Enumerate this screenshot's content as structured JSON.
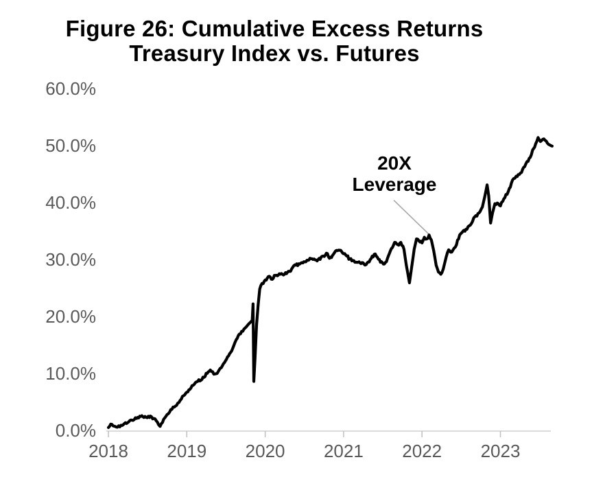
{
  "title": {
    "line1": "Figure 26: Cumulative Excess Returns",
    "line2": "Treasury Index vs. Futures"
  },
  "annotation": {
    "line1": "20X",
    "line2": "Leverage"
  },
  "colors": {
    "background": "#ffffff",
    "title_text": "#000000",
    "axis_labels": "#595959",
    "axis_line": "#cfcfcf",
    "tick_mark": "#bfbfbf",
    "series_line": "#000000",
    "leader_line": "#a6a6a6"
  },
  "chart_data": {
    "type": "line",
    "title": "Figure 26: Cumulative Excess Returns Treasury Index vs. Futures",
    "grid": false,
    "legend_position": "none",
    "x_axis": {
      "tick_labels": [
        "2018",
        "2019",
        "2020",
        "2021",
        "2022",
        "2023"
      ],
      "tick_values": [
        2018,
        2019,
        2020,
        2021,
        2022,
        2023
      ],
      "range": [
        2017.97,
        2023.64
      ]
    },
    "y_axis": {
      "tick_labels": [
        "0.0%",
        "10.0%",
        "20.0%",
        "30.0%",
        "40.0%",
        "50.0%",
        "60.0%"
      ],
      "tick_values": [
        0,
        10,
        20,
        30,
        40,
        50,
        60
      ],
      "range": [
        0,
        60
      ]
    },
    "annotation": {
      "text": "20X Leverage",
      "leader_from": [
        2021.64,
        40.4
      ],
      "leader_to": [
        2022.09,
        34.4
      ]
    },
    "noise_amplitude_pct": 0.25,
    "series": [
      {
        "name": "20X Leverage",
        "color": "#000000",
        "points": [
          [
            2018.0,
            0.5
          ],
          [
            2018.03,
            1.1
          ],
          [
            2018.06,
            0.8
          ],
          [
            2018.1,
            0.6
          ],
          [
            2018.13,
            0.8
          ],
          [
            2018.16,
            0.9
          ],
          [
            2018.19,
            1.0
          ],
          [
            2018.23,
            1.2
          ],
          [
            2018.26,
            1.5
          ],
          [
            2018.3,
            1.8
          ],
          [
            2018.33,
            1.9
          ],
          [
            2018.36,
            2.1
          ],
          [
            2018.4,
            2.5
          ],
          [
            2018.44,
            2.4
          ],
          [
            2018.48,
            2.3
          ],
          [
            2018.51,
            2.5
          ],
          [
            2018.55,
            2.4
          ],
          [
            2018.58,
            2.1
          ],
          [
            2018.61,
            1.7
          ],
          [
            2018.64,
            1.0
          ],
          [
            2018.66,
            0.7
          ],
          [
            2018.69,
            1.4
          ],
          [
            2018.72,
            2.2
          ],
          [
            2018.75,
            2.8
          ],
          [
            2018.78,
            3.2
          ],
          [
            2018.81,
            3.7
          ],
          [
            2018.84,
            4.1
          ],
          [
            2018.87,
            4.4
          ],
          [
            2018.9,
            4.9
          ],
          [
            2018.93,
            5.5
          ],
          [
            2018.96,
            6.1
          ],
          [
            2019.0,
            6.7
          ],
          [
            2019.04,
            7.2
          ],
          [
            2019.08,
            7.9
          ],
          [
            2019.11,
            8.4
          ],
          [
            2019.14,
            8.6
          ],
          [
            2019.18,
            8.8
          ],
          [
            2019.22,
            9.3
          ],
          [
            2019.26,
            10.0
          ],
          [
            2019.3,
            10.6
          ],
          [
            2019.33,
            10.3
          ],
          [
            2019.36,
            9.9
          ],
          [
            2019.4,
            10.3
          ],
          [
            2019.44,
            11.0
          ],
          [
            2019.48,
            11.9
          ],
          [
            2019.52,
            12.9
          ],
          [
            2019.56,
            13.7
          ],
          [
            2019.6,
            14.9
          ],
          [
            2019.63,
            15.9
          ],
          [
            2019.67,
            16.9
          ],
          [
            2019.7,
            17.4
          ],
          [
            2019.73,
            17.8
          ],
          [
            2019.76,
            18.2
          ],
          [
            2019.79,
            18.7
          ],
          [
            2019.82,
            19.1
          ],
          [
            2019.835,
            19.3
          ],
          [
            2019.845,
            22.2
          ],
          [
            2019.855,
            8.6
          ],
          [
            2019.87,
            12.5
          ],
          [
            2019.89,
            18.5
          ],
          [
            2019.91,
            22.0
          ],
          [
            2019.93,
            24.8
          ],
          [
            2019.96,
            25.8
          ],
          [
            2020.0,
            26.4
          ],
          [
            2020.04,
            27.0
          ],
          [
            2020.09,
            26.5
          ],
          [
            2020.13,
            27.2
          ],
          [
            2020.18,
            27.5
          ],
          [
            2020.22,
            27.4
          ],
          [
            2020.26,
            27.7
          ],
          [
            2020.31,
            27.9
          ],
          [
            2020.35,
            28.6
          ],
          [
            2020.39,
            29.0
          ],
          [
            2020.44,
            29.2
          ],
          [
            2020.48,
            29.4
          ],
          [
            2020.52,
            29.6
          ],
          [
            2020.57,
            30.2
          ],
          [
            2020.61,
            30.0
          ],
          [
            2020.65,
            29.9
          ],
          [
            2020.7,
            30.0
          ],
          [
            2020.74,
            30.6
          ],
          [
            2020.78,
            31.1
          ],
          [
            2020.82,
            30.2
          ],
          [
            2020.87,
            30.9
          ],
          [
            2020.91,
            31.6
          ],
          [
            2020.95,
            31.6
          ],
          [
            2021.0,
            31.0
          ],
          [
            2021.04,
            30.6
          ],
          [
            2021.08,
            30.1
          ],
          [
            2021.13,
            29.8
          ],
          [
            2021.17,
            29.5
          ],
          [
            2021.21,
            29.4
          ],
          [
            2021.26,
            29.2
          ],
          [
            2021.3,
            29.4
          ],
          [
            2021.34,
            30.0
          ],
          [
            2021.39,
            30.9
          ],
          [
            2021.43,
            30.4
          ],
          [
            2021.47,
            29.5
          ],
          [
            2021.52,
            29.2
          ],
          [
            2021.56,
            30.2
          ],
          [
            2021.61,
            31.9
          ],
          [
            2021.65,
            33.0
          ],
          [
            2021.69,
            32.6
          ],
          [
            2021.73,
            33.0
          ],
          [
            2021.77,
            31.8
          ],
          [
            2021.8,
            29.0
          ],
          [
            2021.84,
            25.9
          ],
          [
            2021.87,
            28.8
          ],
          [
            2021.9,
            31.8
          ],
          [
            2021.93,
            33.6
          ],
          [
            2021.96,
            33.3
          ],
          [
            2022.0,
            32.9
          ],
          [
            2022.03,
            33.9
          ],
          [
            2022.06,
            33.6
          ],
          [
            2022.09,
            34.3
          ],
          [
            2022.12,
            33.4
          ],
          [
            2022.15,
            31.5
          ],
          [
            2022.18,
            29.0
          ],
          [
            2022.21,
            27.8
          ],
          [
            2022.24,
            27.4
          ],
          [
            2022.27,
            28.3
          ],
          [
            2022.31,
            30.5
          ],
          [
            2022.34,
            31.7
          ],
          [
            2022.38,
            31.3
          ],
          [
            2022.41,
            32.0
          ],
          [
            2022.44,
            32.6
          ],
          [
            2022.48,
            34.3
          ],
          [
            2022.52,
            34.9
          ],
          [
            2022.56,
            35.3
          ],
          [
            2022.6,
            35.9
          ],
          [
            2022.63,
            36.3
          ],
          [
            2022.66,
            37.3
          ],
          [
            2022.7,
            37.6
          ],
          [
            2022.74,
            38.4
          ],
          [
            2022.77,
            39.2
          ],
          [
            2022.8,
            41.0
          ],
          [
            2022.83,
            43.1
          ],
          [
            2022.85,
            41.2
          ],
          [
            2022.875,
            36.4
          ],
          [
            2022.9,
            38.2
          ],
          [
            2022.93,
            39.8
          ],
          [
            2022.96,
            39.9
          ],
          [
            2023.0,
            39.4
          ],
          [
            2023.03,
            40.2
          ],
          [
            2023.07,
            41.4
          ],
          [
            2023.1,
            41.9
          ],
          [
            2023.14,
            43.4
          ],
          [
            2023.17,
            44.2
          ],
          [
            2023.2,
            44.6
          ],
          [
            2023.24,
            44.9
          ],
          [
            2023.27,
            45.3
          ],
          [
            2023.31,
            46.3
          ],
          [
            2023.34,
            47.2
          ],
          [
            2023.38,
            47.9
          ],
          [
            2023.41,
            49.2
          ],
          [
            2023.45,
            50.3
          ],
          [
            2023.48,
            51.4
          ],
          [
            2023.51,
            50.7
          ],
          [
            2023.54,
            51.1
          ],
          [
            2023.57,
            50.9
          ],
          [
            2023.6,
            50.4
          ],
          [
            2023.63,
            50.1
          ],
          [
            2023.66,
            49.9
          ]
        ]
      }
    ]
  }
}
